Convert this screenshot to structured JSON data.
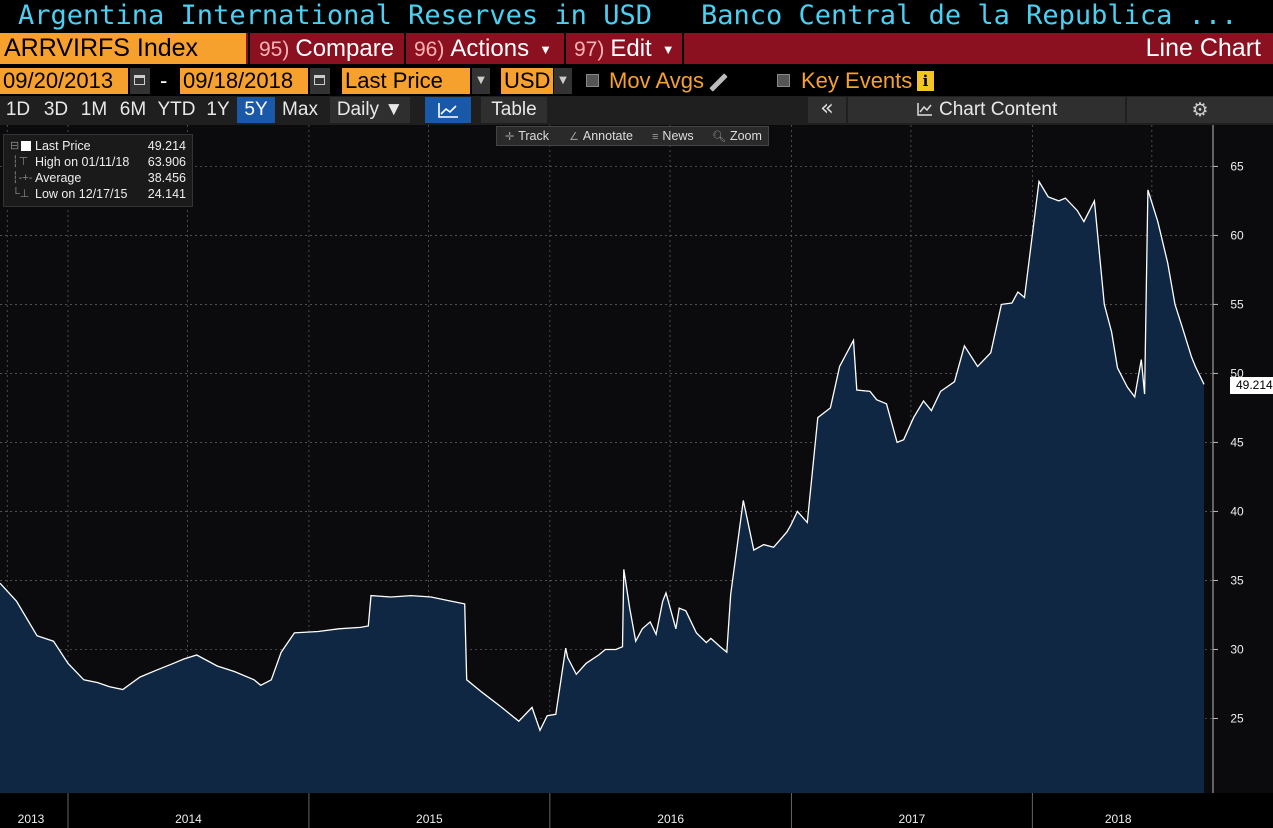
{
  "header": {
    "title": "Argentina International Reserves in USD",
    "source": "Banco Central de la Republica ..."
  },
  "toolbar": {
    "ticker": "ARRVIRFS Index",
    "compare_num": "95)",
    "compare_label": "Compare",
    "actions_num": "96)",
    "actions_label": "Actions",
    "edit_num": "97)",
    "edit_label": "Edit",
    "chart_type": "Line Chart"
  },
  "params": {
    "start_date": "09/20/2013",
    "dash": "-",
    "end_date": "09/18/2018",
    "field": "Last Price",
    "currency": "USD",
    "mov_avgs": "Mov Avgs",
    "key_events": "Key Events",
    "info": "i"
  },
  "periods": {
    "items": [
      "1D",
      "3D",
      "1M",
      "6M",
      "YTD",
      "1Y",
      "5Y",
      "Max"
    ],
    "selected": "5Y",
    "frequency": "Daily ▼",
    "table": "Table",
    "collapse": "«",
    "chart_content": "Chart Content",
    "settings_icon": "gear-icon"
  },
  "chart_tools": {
    "track": "Track",
    "annotate": "Annotate",
    "news": "News",
    "zoom": "Zoom"
  },
  "legend": {
    "last_label": "Last Price",
    "last_value": "49.214",
    "high_label": "High on 01/11/18",
    "high_value": "63.906",
    "avg_label": "Average",
    "avg_value": "38.456",
    "low_label": "Low on 12/17/15",
    "low_value": "24.141"
  },
  "colors": {
    "accent": "#f6a02d",
    "title": "#4ad0f2",
    "toolbar_bg": "#8b1020",
    "area_fill": "#0f2742",
    "line": "#ffffff"
  },
  "chart_data": {
    "type": "area",
    "x_tick_labels": [
      "2013",
      "2014",
      "2015",
      "2016",
      "2017",
      "2018"
    ],
    "y_ticks": [
      25,
      30,
      35,
      40,
      45,
      50,
      55,
      60,
      65
    ],
    "ylim": [
      19.6,
      68
    ],
    "xlim": [
      "2013-09-20",
      "2018-09-18"
    ],
    "last_value_label": "49.214",
    "grid": true,
    "series": [
      {
        "x": [
          "2013-09-20",
          "2013-10-15",
          "2013-11-15",
          "2013-12-10",
          "2014-01-01",
          "2014-01-25",
          "2014-02-15",
          "2014-03-05",
          "2014-03-25",
          "2014-04-20",
          "2014-05-15",
          "2014-06-10",
          "2014-06-25",
          "2014-07-15",
          "2014-08-15",
          "2014-09-10",
          "2014-10-10",
          "2014-10-20",
          "2014-11-05",
          "2014-11-20",
          "2014-12-10",
          "2015-01-15",
          "2015-02-15",
          "2015-03-20",
          "2015-04-01",
          "2015-04-05",
          "2015-05-05",
          "2015-06-05",
          "2015-07-05",
          "2015-08-05",
          "2015-08-25",
          "2015-08-28",
          "2015-09-20",
          "2015-10-20",
          "2015-11-15",
          "2015-12-05",
          "2015-12-17",
          "2015-12-28",
          "2016-01-10",
          "2016-01-25",
          "2016-01-28",
          "2016-02-10",
          "2016-02-25",
          "2016-03-15",
          "2016-03-25",
          "2016-04-10",
          "2016-04-20",
          "2016-04-22",
          "2016-05-01",
          "2016-05-10",
          "2016-05-20",
          "2016-06-01",
          "2016-06-10",
          "2016-06-20",
          "2016-06-25",
          "2016-07-10",
          "2016-07-15",
          "2016-07-25",
          "2016-08-10",
          "2016-08-25",
          "2016-09-01",
          "2016-09-15",
          "2016-09-20",
          "2016-09-25",
          "2016-10-01",
          "2016-10-20",
          "2016-11-05",
          "2016-11-20",
          "2016-12-05",
          "2016-12-25",
          "2016-12-31",
          "2017-01-10",
          "2017-01-25",
          "2017-02-10",
          "2017-03-01",
          "2017-03-15",
          "2017-04-05",
          "2017-04-10",
          "2017-04-30",
          "2017-05-10",
          "2017-05-25",
          "2017-06-10",
          "2017-06-20",
          "2017-07-05",
          "2017-07-20",
          "2017-08-01",
          "2017-08-15",
          "2017-09-05",
          "2017-09-20",
          "2017-10-10",
          "2017-10-30",
          "2017-11-15",
          "2017-12-01",
          "2017-12-10",
          "2017-12-20",
          "2018-01-11",
          "2018-01-25",
          "2018-02-10",
          "2018-02-20",
          "2018-03-10",
          "2018-03-20",
          "2018-04-05",
          "2018-04-20",
          "2018-05-01",
          "2018-05-10",
          "2018-05-25",
          "2018-06-05",
          "2018-06-15",
          "2018-06-20",
          "2018-06-25",
          "2018-07-10",
          "2018-07-25",
          "2018-08-05",
          "2018-08-15",
          "2018-08-30",
          "2018-09-05",
          "2018-09-18"
        ],
        "y": [
          34.8,
          33.5,
          31.0,
          30.6,
          29.0,
          27.8,
          27.6,
          27.3,
          27.1,
          28.0,
          28.5,
          29.0,
          29.3,
          29.6,
          28.8,
          28.4,
          27.8,
          27.4,
          27.8,
          29.8,
          31.2,
          31.3,
          31.5,
          31.6,
          31.7,
          33.9,
          33.8,
          33.9,
          33.8,
          33.5,
          33.3,
          27.8,
          26.9,
          25.8,
          24.8,
          25.8,
          24.141,
          25.2,
          25.3,
          30.1,
          29.4,
          28.2,
          29.0,
          29.6,
          30.0,
          30.0,
          30.2,
          35.8,
          33.0,
          30.6,
          31.5,
          32.0,
          31.1,
          33.5,
          34.1,
          31.5,
          33.0,
          32.8,
          31.2,
          30.5,
          30.8,
          30.2,
          30.0,
          29.8,
          34.0,
          40.8,
          37.2,
          37.6,
          37.4,
          38.5,
          39.0,
          40.0,
          39.2,
          46.8,
          47.5,
          50.5,
          52.4,
          48.8,
          48.7,
          48.1,
          47.8,
          45.0,
          45.2,
          46.8,
          48.0,
          47.3,
          48.7,
          49.4,
          52.0,
          50.5,
          51.5,
          55.0,
          55.1,
          55.9,
          55.5,
          63.906,
          62.8,
          62.5,
          62.7,
          61.8,
          61.0,
          62.5,
          55.0,
          53.0,
          50.4,
          49.0,
          48.3,
          51.0,
          48.5,
          63.3,
          61.0,
          58.0,
          55.0,
          53.5,
          51.2,
          50.5,
          49.214
        ]
      }
    ]
  }
}
